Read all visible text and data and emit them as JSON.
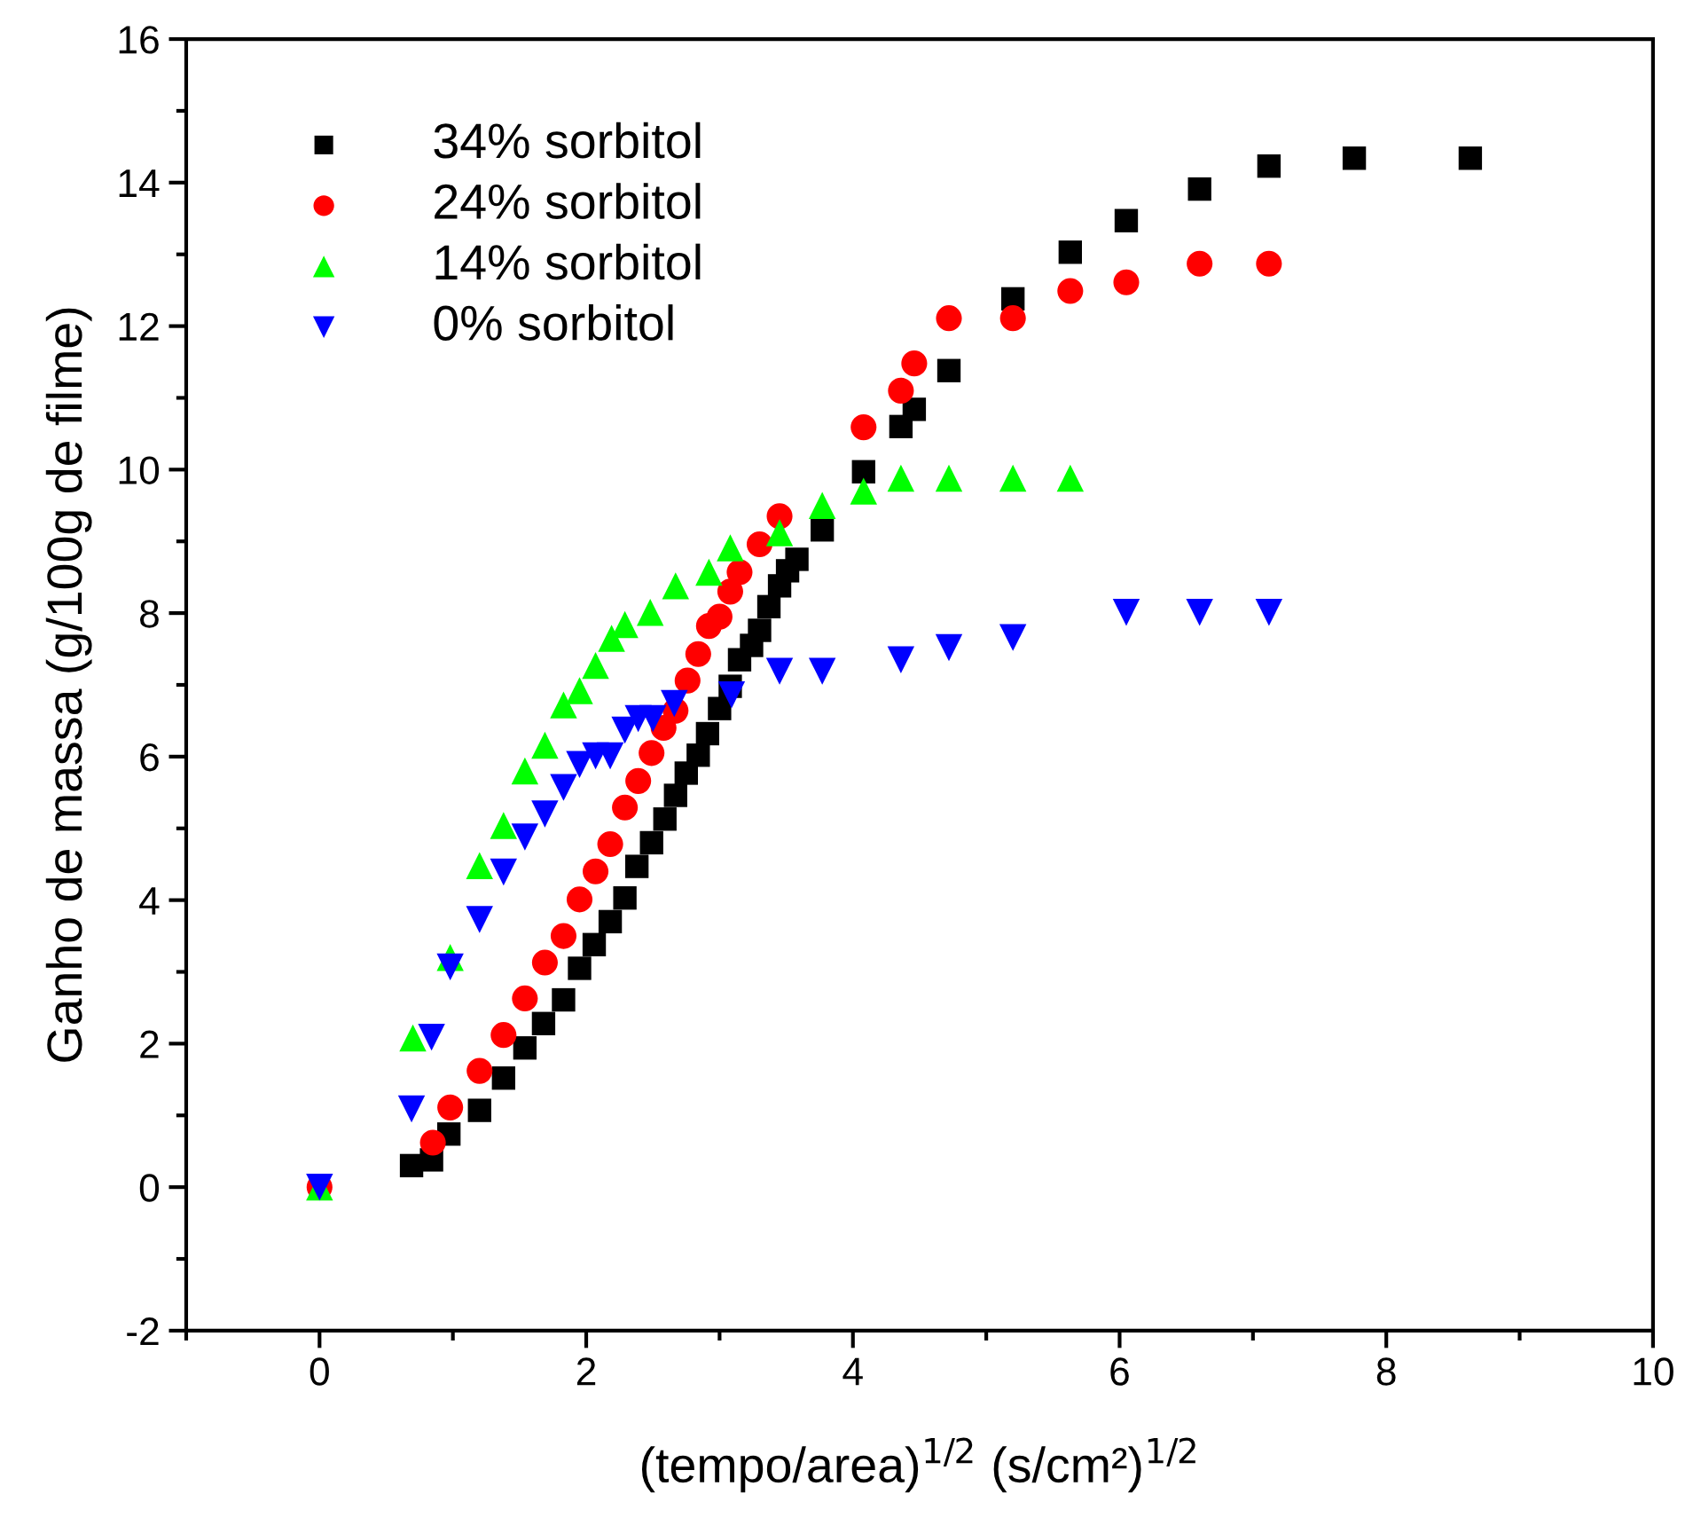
{
  "chart_data": {
    "type": "scatter",
    "xlabel": "(tempo/area)$^{1/2}$ (s/cm²)$^{1/2}$",
    "ylabel": "Ganho de massa (g/100g de filme)",
    "xlim": [
      -1,
      10
    ],
    "xticks": [
      0,
      2,
      4,
      6,
      8,
      10
    ],
    "ylim": [
      -2,
      16
    ],
    "yticks": [
      {
        "value": -2,
        "label": "-2"
      },
      0,
      2,
      4,
      6,
      8,
      10,
      12,
      14,
      16
    ],
    "grid": false,
    "legend": "top left",
    "series": [
      {
        "name": "34% sorbitol",
        "color": "#000000",
        "marker": "square",
        "x": [
          0.69,
          0.84,
          0.97,
          1.2,
          1.38,
          1.54,
          1.68,
          1.83,
          1.95,
          2.06,
          2.18,
          2.29,
          2.38,
          2.49,
          2.59,
          2.67,
          2.75,
          2.84,
          2.91,
          3.0,
          3.08,
          3.15,
          3.24,
          3.3,
          3.37,
          3.45,
          3.51,
          3.58,
          3.77,
          4.08,
          4.36,
          4.46,
          4.72,
          5.2,
          5.63,
          6.05,
          6.6,
          7.12,
          7.76,
          8.63
        ],
        "values": [
          0.3,
          0.38,
          0.74,
          1.07,
          1.52,
          1.94,
          2.28,
          2.61,
          3.05,
          3.38,
          3.7,
          4.03,
          4.47,
          4.8,
          5.13,
          5.46,
          5.77,
          6.02,
          6.32,
          6.67,
          6.98,
          7.35,
          7.55,
          7.76,
          8.09,
          8.38,
          8.59,
          8.75,
          9.16,
          9.97,
          10.6,
          10.84,
          11.38,
          12.38,
          13.03,
          13.47,
          13.91,
          14.23,
          14.34,
          14.34
        ]
      },
      {
        "name": "24% sorbitol",
        "color": "#ff0000",
        "marker": "circle",
        "x": [
          0,
          0.85,
          0.98,
          1.2,
          1.38,
          1.54,
          1.69,
          1.83,
          1.95,
          2.07,
          2.18,
          2.29,
          2.39,
          2.49,
          2.58,
          2.67,
          2.76,
          2.84,
          2.92,
          3.0,
          3.08,
          3.15,
          3.3,
          3.45,
          4.08,
          4.36,
          4.46,
          4.72,
          5.2,
          5.63,
          6.05,
          6.6,
          7.12
        ],
        "values": [
          0,
          0.62,
          1.11,
          1.62,
          2.12,
          2.63,
          3.13,
          3.5,
          4.01,
          4.4,
          4.78,
          5.29,
          5.66,
          6.05,
          6.4,
          6.64,
          7.06,
          7.43,
          7.82,
          7.95,
          8.3,
          8.57,
          8.96,
          9.35,
          10.59,
          11.1,
          11.48,
          12.11,
          12.11,
          12.49,
          12.61,
          12.87,
          12.87
        ]
      },
      {
        "name": "14% sorbitol",
        "color": "#00ff00",
        "marker": "triangle",
        "x": [
          0,
          0.7,
          0.98,
          1.2,
          1.38,
          1.54,
          1.69,
          1.83,
          1.95,
          2.07,
          2.19,
          2.29,
          2.48,
          2.67,
          2.92,
          3.08,
          3.45,
          3.77,
          4.08,
          4.36,
          4.72,
          5.2,
          5.63
        ],
        "values": [
          0,
          2.08,
          3.2,
          4.48,
          5.04,
          5.8,
          6.16,
          6.72,
          6.92,
          7.27,
          7.65,
          7.84,
          8.01,
          8.38,
          8.57,
          8.91,
          9.12,
          9.5,
          9.7,
          9.88,
          9.88,
          9.88,
          9.88
        ]
      },
      {
        "name": "0% sorbitol",
        "color": "#0000ff",
        "marker": "triangle_down",
        "x": [
          0,
          0.69,
          0.84,
          0.98,
          1.2,
          1.38,
          1.54,
          1.69,
          1.83,
          1.95,
          2.07,
          2.18,
          2.29,
          2.39,
          2.5,
          2.66,
          3.09,
          3.45,
          3.77,
          4.36,
          4.72,
          5.2,
          6.05,
          6.6,
          7.12
        ],
        "values": [
          0,
          1.09,
          2.09,
          3.07,
          3.73,
          4.39,
          4.88,
          5.2,
          5.57,
          5.89,
          6.01,
          6.01,
          6.37,
          6.53,
          6.53,
          6.74,
          6.86,
          7.19,
          7.19,
          7.35,
          7.52,
          7.66,
          8.01,
          8.01,
          8.01
        ]
      }
    ]
  }
}
